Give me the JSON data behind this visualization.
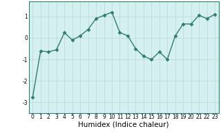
{
  "x": [
    0,
    1,
    2,
    3,
    4,
    5,
    6,
    7,
    8,
    9,
    10,
    11,
    12,
    13,
    14,
    15,
    16,
    17,
    18,
    19,
    20,
    21,
    22,
    23
  ],
  "y": [
    -2.75,
    -0.6,
    -0.65,
    -0.55,
    0.25,
    -0.1,
    0.1,
    0.4,
    0.9,
    1.05,
    1.2,
    0.25,
    0.1,
    -0.5,
    -0.85,
    -1.0,
    -0.65,
    -1.0,
    0.1,
    0.65,
    0.65,
    1.05,
    0.9,
    1.1
  ],
  "line_color": "#2e7d6e",
  "marker": "D",
  "marker_size": 2.5,
  "bg_color": "#d4f0f0",
  "grid_color": "#c0dada",
  "xlabel": "Humidex (Indice chaleur)",
  "ylabel": "",
  "ylim": [
    -3.5,
    1.7
  ],
  "xlim": [
    -0.5,
    23.5
  ],
  "yticks": [
    -3,
    -2,
    -1,
    0,
    1
  ],
  "xticks": [
    0,
    1,
    2,
    3,
    4,
    5,
    6,
    7,
    8,
    9,
    10,
    11,
    12,
    13,
    14,
    15,
    16,
    17,
    18,
    19,
    20,
    21,
    22,
    23
  ],
  "tick_fontsize": 5.5,
  "xlabel_fontsize": 7.5,
  "fig_bg": "#ffffff"
}
